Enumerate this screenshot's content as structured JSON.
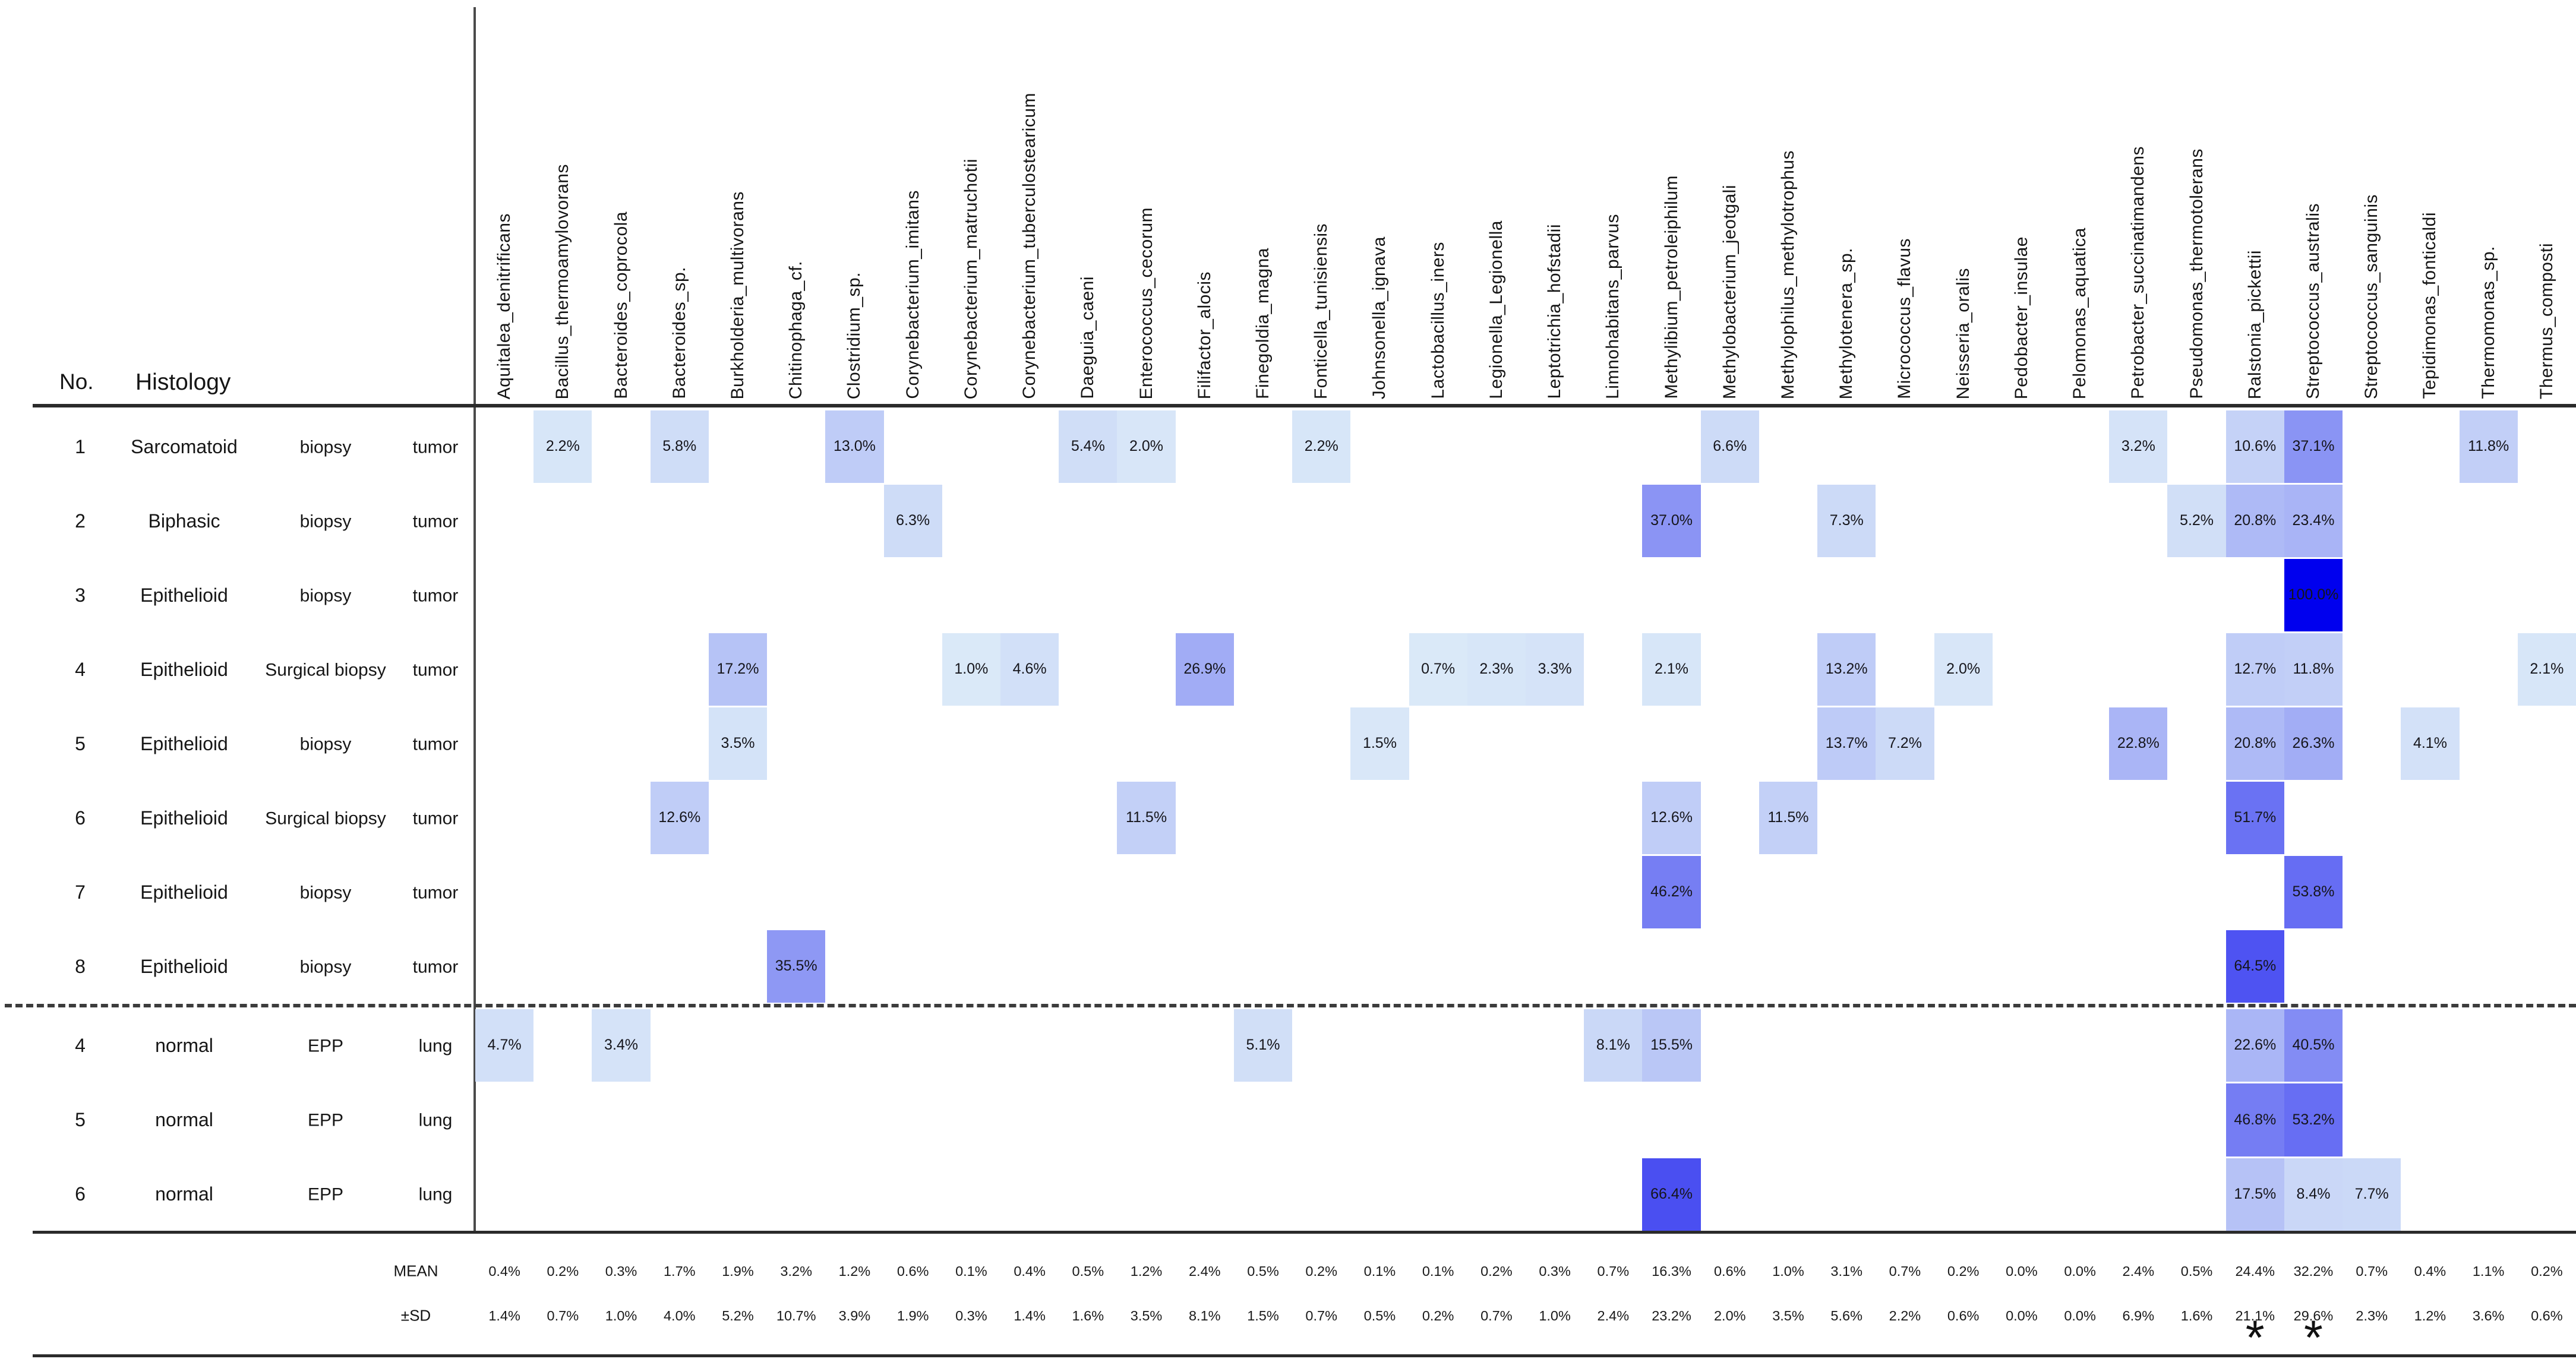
{
  "header": {
    "no_label": "No.",
    "histology_label": "Histology"
  },
  "footer": {
    "mean_label": "MEAN",
    "sd_label": "±SD",
    "significance_marker": "*",
    "significant_columns": [
      "Ralstonia_pickettii",
      "Streptococcus_australis"
    ]
  },
  "chart_data": {
    "type": "heatmap",
    "unit": "%",
    "columns": [
      "Aquitalea_denitrificans",
      "Bacillus_thermoamylovorans",
      "Bacteroides_coprocola",
      "Bacteroides_sp.",
      "Burkholderia_multivorans",
      "Chitinophaga_cf.",
      "Clostridium_sp.",
      "Corynebacterium_imitans",
      "Corynebacterium_matruchotii",
      "Corynebacterium_tuberculostearicum",
      "Daeguia_caeni",
      "Enterococcus_cecorum",
      "Filifactor_alocis",
      "Finegoldia_magna",
      "Fonticella_tunisiensis",
      "Johnsonella_ignava",
      "Lactobacillus_iners",
      "Legionella_Legionella",
      "Leptotrichia_hofstadii",
      "Limnohabitans_parvus",
      "Methylibium_petroleiphilum",
      "Methylobacterium_jeotgali",
      "Methylophilus_methylotrophus",
      "Methylotenera_sp.",
      "Micrococcus_flavus",
      "Neisseria_oralis",
      "Pedobacter_insulae",
      "Pelomonas_aquatica",
      "Petrobacter_succinatimandens",
      "Pseudomonas_thermotolerans",
      "Ralstonia_pickettii",
      "Streptococcus_australis",
      "Streptococcus_sanguinis",
      "Tepidimonas_fonticaldi",
      "Thermomonas_sp.",
      "Thermus_composti"
    ],
    "rows": [
      {
        "no": "1",
        "histology": "Sarcomatoid",
        "sample": "biopsy",
        "tissue": "tumor",
        "group": "tumor",
        "cells": [
          [
            1,
            2.2
          ],
          [
            3,
            5.8
          ],
          [
            6,
            13.0
          ],
          [
            10,
            5.4
          ],
          [
            11,
            2.0
          ],
          [
            14,
            2.2
          ],
          [
            21,
            6.6
          ],
          [
            28,
            3.2
          ],
          [
            30,
            10.6
          ],
          [
            31,
            37.1
          ],
          [
            34,
            11.8
          ]
        ]
      },
      {
        "no": "2",
        "histology": "Biphasic",
        "sample": "biopsy",
        "tissue": "tumor",
        "group": "tumor",
        "cells": [
          [
            7,
            6.3
          ],
          [
            20,
            37.0
          ],
          [
            23,
            7.3
          ],
          [
            29,
            5.2
          ],
          [
            30,
            20.8
          ],
          [
            31,
            23.4
          ]
        ]
      },
      {
        "no": "3",
        "histology": "Epithelioid",
        "sample": "biopsy",
        "tissue": "tumor",
        "group": "tumor",
        "cells": [
          [
            31,
            100.0
          ]
        ]
      },
      {
        "no": "4",
        "histology": "Epithelioid",
        "sample": "Surgical biopsy",
        "tissue": "tumor",
        "group": "tumor",
        "cells": [
          [
            4,
            17.2
          ],
          [
            8,
            1.0
          ],
          [
            9,
            4.6
          ],
          [
            12,
            26.9
          ],
          [
            16,
            0.7
          ],
          [
            17,
            2.3
          ],
          [
            18,
            3.3
          ],
          [
            20,
            2.1
          ],
          [
            23,
            13.2
          ],
          [
            25,
            2.0
          ],
          [
            30,
            12.7
          ],
          [
            31,
            11.8
          ],
          [
            35,
            2.1
          ]
        ]
      },
      {
        "no": "5",
        "histology": "Epithelioid",
        "sample": "biopsy",
        "tissue": "tumor",
        "group": "tumor",
        "cells": [
          [
            4,
            3.5
          ],
          [
            15,
            1.5
          ],
          [
            23,
            13.7
          ],
          [
            24,
            7.2
          ],
          [
            28,
            22.8
          ],
          [
            30,
            20.8
          ],
          [
            31,
            26.3
          ],
          [
            33,
            4.1
          ]
        ]
      },
      {
        "no": "6",
        "histology": "Epithelioid",
        "sample": "Surgical biopsy",
        "tissue": "tumor",
        "group": "tumor",
        "cells": [
          [
            3,
            12.6
          ],
          [
            11,
            11.5
          ],
          [
            20,
            12.6
          ],
          [
            22,
            11.5
          ],
          [
            30,
            51.7
          ]
        ]
      },
      {
        "no": "7",
        "histology": "Epithelioid",
        "sample": "biopsy",
        "tissue": "tumor",
        "group": "tumor",
        "cells": [
          [
            20,
            46.2
          ],
          [
            31,
            53.8
          ]
        ]
      },
      {
        "no": "8",
        "histology": "Epithelioid",
        "sample": "biopsy",
        "tissue": "tumor",
        "group": "tumor",
        "cells": [
          [
            5,
            35.5
          ],
          [
            30,
            64.5
          ]
        ]
      },
      {
        "no": "4",
        "histology": "normal",
        "sample": "EPP",
        "tissue": "lung",
        "group": "normal",
        "cells": [
          [
            0,
            4.7
          ],
          [
            2,
            3.4
          ],
          [
            13,
            5.1
          ],
          [
            19,
            8.1
          ],
          [
            20,
            15.5
          ],
          [
            30,
            22.6
          ],
          [
            31,
            40.5
          ]
        ]
      },
      {
        "no": "5",
        "histology": "normal",
        "sample": "EPP",
        "tissue": "lung",
        "group": "normal",
        "cells": [
          [
            30,
            46.8
          ],
          [
            31,
            53.2
          ]
        ]
      },
      {
        "no": "6",
        "histology": "normal",
        "sample": "EPP",
        "tissue": "lung",
        "group": "normal",
        "cells": [
          [
            20,
            66.4
          ],
          [
            30,
            17.5
          ],
          [
            31,
            8.4
          ],
          [
            32,
            7.7
          ]
        ]
      }
    ],
    "mean": [
      0.4,
      0.2,
      0.3,
      1.7,
      1.9,
      3.2,
      1.2,
      0.6,
      0.1,
      0.4,
      0.5,
      1.2,
      2.4,
      0.5,
      0.2,
      0.1,
      0.1,
      0.2,
      0.3,
      0.7,
      16.3,
      0.6,
      1.0,
      3.1,
      0.7,
      0.2,
      0.0,
      0.0,
      2.4,
      0.5,
      24.4,
      32.2,
      0.7,
      0.4,
      1.1,
      0.2
    ],
    "sd": [
      1.4,
      0.7,
      1.0,
      4.0,
      5.2,
      10.7,
      3.9,
      1.9,
      0.3,
      1.4,
      1.6,
      3.5,
      8.1,
      1.5,
      0.7,
      0.5,
      0.2,
      0.7,
      1.0,
      2.4,
      23.2,
      2.0,
      3.5,
      5.6,
      2.2,
      0.6,
      0.0,
      0.0,
      6.9,
      1.6,
      21.1,
      29.6,
      2.3,
      1.2,
      3.6,
      0.6
    ],
    "color_scale": {
      "min": 0,
      "max": 100,
      "min_color": "#dcebf8",
      "max_color": "#0000ee"
    },
    "layout_hints": {
      "legend": "none",
      "grid": "off",
      "values_shown_in_cells": true
    }
  }
}
